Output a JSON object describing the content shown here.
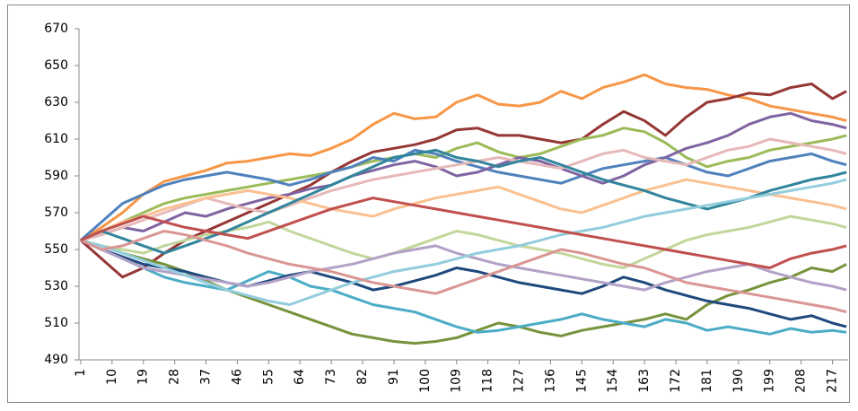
{
  "chart_data": {
    "type": "line",
    "x": [
      1,
      7,
      13,
      19,
      25,
      31,
      37,
      43,
      49,
      55,
      61,
      67,
      73,
      79,
      85,
      91,
      97,
      103,
      109,
      115,
      121,
      127,
      133,
      139,
      145,
      151,
      157,
      163,
      169,
      175,
      181,
      187,
      193,
      199,
      205,
      211,
      217,
      221
    ],
    "xlim": [
      0.5,
      221.5
    ],
    "xticks": [
      1,
      10,
      19,
      28,
      37,
      46,
      55,
      64,
      73,
      82,
      91,
      100,
      109,
      118,
      127,
      136,
      145,
      154,
      163,
      172,
      181,
      190,
      199,
      208,
      217
    ],
    "ylim": [
      490,
      670
    ],
    "yticks": [
      490,
      510,
      530,
      550,
      570,
      590,
      610,
      630,
      650,
      670
    ],
    "grid": false,
    "series": [
      {
        "color": "#f79646",
        "values": [
          555,
          562,
          570,
          580,
          587,
          590,
          593,
          597,
          598,
          600,
          602,
          601,
          605,
          610,
          618,
          624,
          621,
          622,
          630,
          634,
          629,
          628,
          630,
          636,
          632,
          638,
          641,
          645,
          640,
          638,
          637,
          634,
          632,
          628,
          626,
          624,
          622,
          620
        ]
      },
      {
        "color": "#953735",
        "values": [
          555,
          545,
          535,
          540,
          548,
          555,
          560,
          565,
          570,
          575,
          580,
          585,
          592,
          598,
          603,
          605,
          607,
          610,
          615,
          616,
          612,
          612,
          610,
          608,
          610,
          618,
          625,
          620,
          612,
          622,
          630,
          632,
          635,
          634,
          638,
          640,
          632,
          636
        ]
      },
      {
        "color": "#77933c",
        "values": [
          555,
          552,
          548,
          545,
          542,
          538,
          533,
          528,
          524,
          520,
          516,
          512,
          508,
          504,
          502,
          500,
          499,
          500,
          502,
          506,
          510,
          508,
          505,
          503,
          506,
          508,
          510,
          512,
          515,
          512,
          520,
          525,
          528,
          532,
          535,
          540,
          538,
          542
        ]
      },
      {
        "color": "#4bacc6",
        "values": [
          555,
          550,
          545,
          540,
          535,
          532,
          530,
          528,
          533,
          538,
          535,
          530,
          528,
          524,
          520,
          518,
          516,
          512,
          508,
          505,
          506,
          508,
          510,
          512,
          515,
          512,
          510,
          508,
          512,
          510,
          506,
          508,
          506,
          504,
          507,
          505,
          506,
          505
        ]
      },
      {
        "color": "#9bbb59",
        "values": [
          555,
          560,
          565,
          570,
          575,
          578,
          580,
          582,
          584,
          586,
          588,
          590,
          592,
          595,
          598,
          600,
          602,
          600,
          605,
          608,
          603,
          600,
          602,
          606,
          610,
          612,
          616,
          614,
          608,
          600,
          595,
          598,
          600,
          604,
          606,
          608,
          610,
          612
        ]
      },
      {
        "color": "#4f81bd",
        "values": [
          555,
          565,
          575,
          580,
          585,
          588,
          590,
          592,
          590,
          588,
          585,
          588,
          592,
          595,
          600,
          598,
          604,
          602,
          598,
          595,
          592,
          590,
          588,
          586,
          590,
          594,
          596,
          598,
          600,
          596,
          592,
          590,
          594,
          598,
          600,
          602,
          598,
          596
        ]
      },
      {
        "color": "#8064a2",
        "values": [
          555,
          558,
          562,
          560,
          565,
          570,
          568,
          572,
          575,
          578,
          580,
          583,
          585,
          590,
          593,
          596,
          598,
          595,
          590,
          592,
          596,
          600,
          598,
          594,
          590,
          586,
          590,
          596,
          600,
          605,
          608,
          612,
          618,
          622,
          624,
          620,
          618,
          616
        ]
      },
      {
        "color": "#1f497d",
        "values": [
          555,
          550,
          546,
          542,
          540,
          538,
          535,
          532,
          530,
          533,
          536,
          538,
          535,
          532,
          528,
          530,
          533,
          536,
          540,
          538,
          535,
          532,
          530,
          528,
          526,
          530,
          535,
          532,
          528,
          525,
          522,
          520,
          518,
          515,
          512,
          514,
          510,
          508
        ]
      },
      {
        "color": "#e6b9b8",
        "values": [
          555,
          558,
          562,
          566,
          570,
          574,
          578,
          575,
          572,
          570,
          574,
          578,
          582,
          585,
          588,
          590,
          592,
          594,
          596,
          598,
          600,
          598,
          596,
          594,
          598,
          602,
          604,
          600,
          598,
          596,
          600,
          604,
          606,
          610,
          608,
          606,
          604,
          602
        ]
      },
      {
        "color": "#c3d69b",
        "values": [
          555,
          552,
          550,
          548,
          552,
          555,
          558,
          560,
          562,
          565,
          560,
          556,
          552,
          548,
          545,
          548,
          552,
          556,
          560,
          558,
          555,
          552,
          550,
          548,
          545,
          542,
          540,
          545,
          550,
          555,
          558,
          560,
          562,
          565,
          568,
          566,
          564,
          562
        ]
      },
      {
        "color": "#b3a2c7",
        "values": [
          555,
          550,
          545,
          540,
          538,
          536,
          534,
          532,
          530,
          532,
          535,
          538,
          540,
          542,
          545,
          548,
          550,
          552,
          548,
          545,
          542,
          540,
          538,
          536,
          534,
          532,
          530,
          528,
          532,
          535,
          538,
          540,
          542,
          538,
          535,
          532,
          530,
          528
        ]
      },
      {
        "color": "#fac090",
        "values": [
          555,
          560,
          565,
          568,
          572,
          575,
          578,
          580,
          582,
          580,
          578,
          575,
          572,
          570,
          568,
          572,
          575,
          578,
          580,
          582,
          584,
          580,
          576,
          572,
          570,
          574,
          578,
          582,
          585,
          588,
          586,
          584,
          582,
          580,
          578,
          576,
          574,
          572
        ]
      },
      {
        "color": "#31859c",
        "values": [
          555,
          560,
          556,
          552,
          548,
          552,
          556,
          560,
          565,
          570,
          575,
          580,
          585,
          590,
          595,
          600,
          602,
          604,
          600,
          598,
          595,
          598,
          600,
          596,
          592,
          588,
          585,
          582,
          578,
          575,
          572,
          575,
          578,
          582,
          585,
          588,
          590,
          592
        ]
      },
      {
        "color": "#93cddd",
        "values": [
          555,
          552,
          548,
          544,
          540,
          536,
          532,
          528,
          525,
          522,
          520,
          524,
          528,
          532,
          535,
          538,
          540,
          542,
          545,
          548,
          550,
          552,
          555,
          558,
          560,
          562,
          565,
          568,
          570,
          572,
          574,
          576,
          578,
          580,
          582,
          584,
          586,
          588
        ]
      },
      {
        "color": "#d99694",
        "values": [
          555,
          550,
          552,
          556,
          560,
          558,
          555,
          552,
          548,
          545,
          542,
          540,
          538,
          535,
          532,
          530,
          528,
          526,
          530,
          534,
          538,
          542,
          546,
          550,
          548,
          545,
          542,
          540,
          536,
          532,
          530,
          528,
          526,
          524,
          522,
          520,
          518,
          516
        ]
      },
      {
        "color": "#c0504d",
        "values": [
          555,
          560,
          564,
          568,
          565,
          562,
          560,
          558,
          556,
          560,
          564,
          568,
          572,
          575,
          578,
          576,
          574,
          572,
          570,
          568,
          566,
          564,
          562,
          560,
          558,
          556,
          554,
          552,
          550,
          548,
          546,
          544,
          542,
          540,
          545,
          548,
          550,
          552
        ]
      }
    ]
  }
}
